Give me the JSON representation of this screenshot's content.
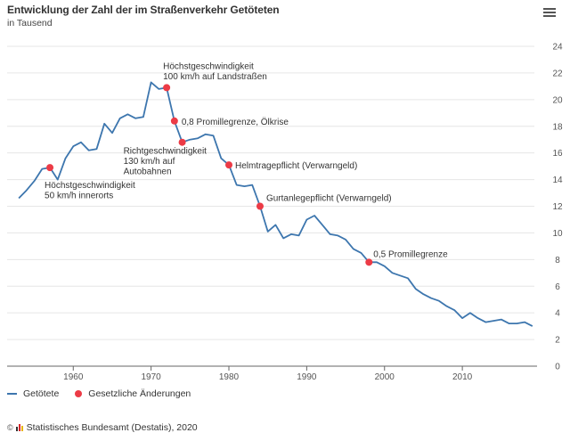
{
  "header": {
    "title": "Entwicklung der Zahl der im Straßenverkehr Getöteten",
    "subtitle": "in Tausend",
    "menu_icon": "hamburger-menu-icon"
  },
  "colors": {
    "line": "#3d76ae",
    "marker": "#ec3b46",
    "grid": "#e6e6e6",
    "axis": "#666666",
    "text": "#333333"
  },
  "chart_data": {
    "type": "line",
    "title": "Entwicklung der Zahl der im Straßenverkehr Getöteten",
    "subtitle": "in Tausend",
    "xlabel": "",
    "ylabel": "",
    "xlim": [
      1951.5,
      2019.6
    ],
    "ylim": [
      0,
      24
    ],
    "x_ticks": [
      1960,
      1970,
      1980,
      1990,
      2000,
      2010
    ],
    "y_ticks": [
      0,
      2,
      4,
      6,
      8,
      10,
      12,
      14,
      16,
      18,
      20,
      22,
      24
    ],
    "y_axis_side": "right",
    "grid": true,
    "legend_position": "bottom-left",
    "series": [
      {
        "name": "Getötete",
        "x": [
          1953,
          1954,
          1955,
          1956,
          1957,
          1958,
          1959,
          1960,
          1961,
          1962,
          1963,
          1964,
          1965,
          1966,
          1967,
          1968,
          1969,
          1970,
          1971,
          1972,
          1973,
          1974,
          1975,
          1976,
          1977,
          1978,
          1979,
          1980,
          1981,
          1982,
          1983,
          1984,
          1985,
          1986,
          1987,
          1988,
          1989,
          1990,
          1991,
          1992,
          1993,
          1994,
          1995,
          1996,
          1997,
          1998,
          1999,
          2000,
          2001,
          2002,
          2003,
          2004,
          2005,
          2006,
          2007,
          2008,
          2009,
          2010,
          2011,
          2012,
          2013,
          2014,
          2015,
          2016,
          2017,
          2018,
          2019
        ],
        "values": [
          12.6,
          13.2,
          13.9,
          14.8,
          14.9,
          14.0,
          15.6,
          16.5,
          16.8,
          16.2,
          16.3,
          18.2,
          17.5,
          18.6,
          18.9,
          18.6,
          18.7,
          21.3,
          20.8,
          20.9,
          18.4,
          16.8,
          17.0,
          17.1,
          17.4,
          17.3,
          15.6,
          15.1,
          13.6,
          13.5,
          13.6,
          12.0,
          10.1,
          10.6,
          9.6,
          9.9,
          9.8,
          11.0,
          11.3,
          10.6,
          9.9,
          9.8,
          9.5,
          8.8,
          8.5,
          7.8,
          7.8,
          7.5,
          7.0,
          6.8,
          6.6,
          5.8,
          5.4,
          5.1,
          4.9,
          4.5,
          4.2,
          3.6,
          4.0,
          3.6,
          3.3,
          3.4,
          3.5,
          3.2,
          3.2,
          3.3,
          3.0
        ]
      },
      {
        "name": "Gesetzliche Änderungen",
        "type": "scatter",
        "points": [
          {
            "x": 1957,
            "y": 14.9,
            "label": [
              "Höchstgeschwindigkeit",
              "50 km/h innerorts"
            ]
          },
          {
            "x": 1972,
            "y": 20.9,
            "label": [
              "Höchstgeschwindigkeit",
              "100 km/h auf Landstraßen"
            ]
          },
          {
            "x": 1973,
            "y": 18.4,
            "label": [
              "0,8 Promillegrenze, Ölkrise"
            ]
          },
          {
            "x": 1974,
            "y": 16.8,
            "label": [
              "Richtgeschwindigkeit",
              "130 km/h auf",
              "Autobahnen"
            ]
          },
          {
            "x": 1980,
            "y": 15.1,
            "label": [
              "Helmtragepflicht (Verwarngeld)"
            ]
          },
          {
            "x": 1984,
            "y": 12.0,
            "label": [
              "Gurtanlegepflicht (Verwarngeld)"
            ]
          },
          {
            "x": 1998,
            "y": 7.8,
            "label": [
              "0,5 Promillegrenze"
            ]
          }
        ]
      }
    ]
  },
  "legend": {
    "items": [
      {
        "label": "Getötete",
        "symbol": "line"
      },
      {
        "label": "Gesetzliche Änderungen",
        "symbol": "dot"
      }
    ]
  },
  "footer": {
    "copyright_symbol": "©",
    "logo_icon": "destatis-logo-icon",
    "text": "Statistisches Bundesamt (Destatis), 2020"
  }
}
